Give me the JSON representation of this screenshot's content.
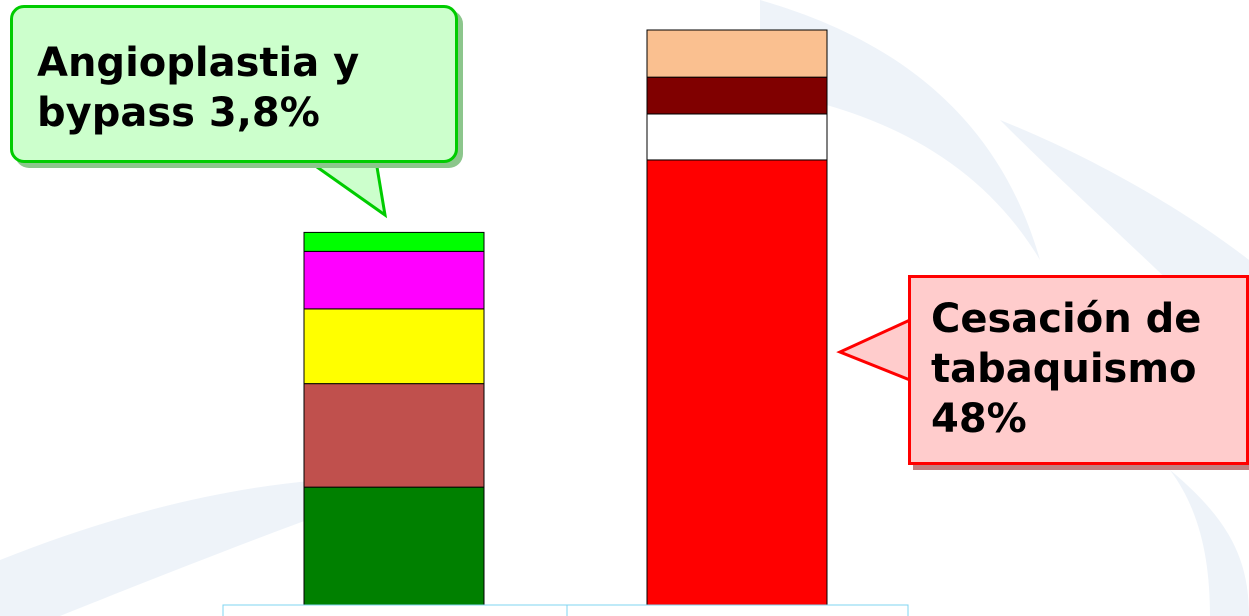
{
  "chart_data": {
    "type": "stacked_bar",
    "categories": [
      null,
      null
    ],
    "ylim": [
      0,
      100
    ],
    "series": [
      {
        "color": "#008000",
        "values": [
          20.5,
          null
        ]
      },
      {
        "color": "#c0504d",
        "values": [
          18,
          null
        ]
      },
      {
        "color": "#ffff00",
        "values": [
          13,
          null
        ]
      },
      {
        "color": "#ff00ff",
        "values": [
          10,
          null
        ]
      },
      {
        "color": "#00ff00",
        "values": [
          3.3,
          null
        ]
      },
      {
        "color": "#ff0000",
        "values": [
          null,
          77.4
        ]
      },
      {
        "color": "#ffffff",
        "values": [
          null,
          8
        ]
      },
      {
        "color": "#800000",
        "values": [
          null,
          6.4
        ]
      },
      {
        "color": "#fac090",
        "values": [
          null,
          8.2
        ]
      }
    ],
    "annotations": [
      {
        "text": "Angioplastia y bypass 3,8%"
      },
      {
        "text": "Cesación de tabaquismo 48%"
      }
    ]
  }
}
